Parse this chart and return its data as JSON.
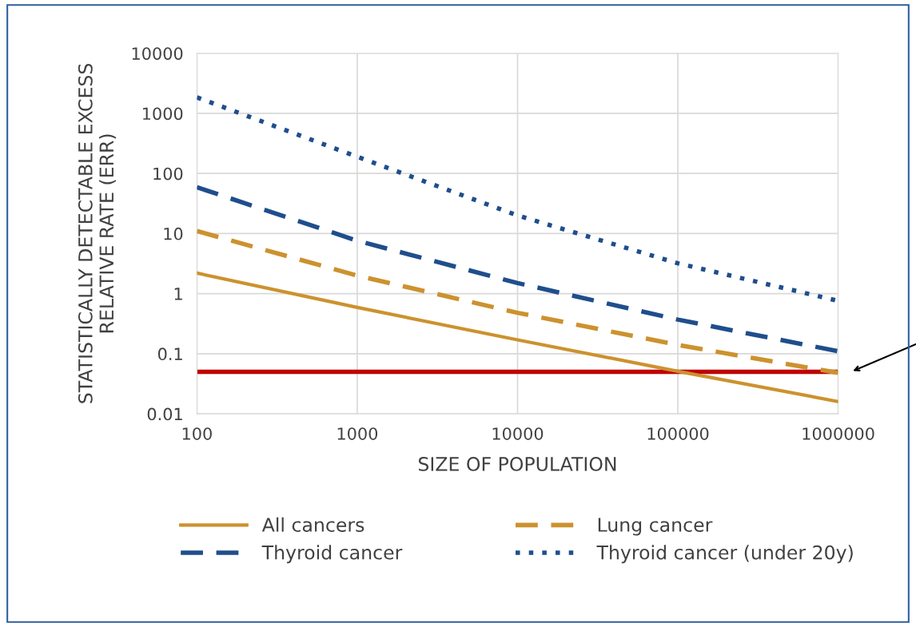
{
  "chart_data": {
    "type": "line",
    "xlabel": "SIZE OF POPULATION",
    "ylabel": "STATISTICALLY DETECTABLE EXCESS\nRELATIVE RATE (ERR)",
    "log": "xy",
    "grid": true,
    "legend": "bottom",
    "xlim": [
      100,
      1000000
    ],
    "xticks": [
      100,
      1000,
      10000,
      100000,
      1000000
    ],
    "ylim": [
      0.01,
      10000
    ],
    "yticks": [
      0.01,
      0.1,
      1,
      10,
      100,
      1000,
      10000
    ],
    "x": [
      100,
      1000,
      10000,
      100000,
      1000000
    ],
    "series": [
      {
        "name": "All cancers",
        "color": "#cc922e",
        "line_style": "solid",
        "values": [
          2.2,
          0.59,
          0.17,
          0.051,
          0.016
        ]
      },
      {
        "name": "Lung cancer",
        "color": "#cc922e",
        "line_style": "dashed",
        "values": [
          11,
          2.0,
          0.48,
          0.14,
          0.048
        ]
      },
      {
        "name": "Thyroid cancer",
        "color": "#1f4e8c",
        "line_style": "dashed",
        "values": [
          59,
          7.6,
          1.5,
          0.37,
          0.11
        ]
      },
      {
        "name": "Thyroid cancer (under 20y)",
        "color": "#1f4e8c",
        "line_style": "dotted",
        "values": [
          1850,
          190,
          20,
          3.2,
          0.76
        ]
      }
    ],
    "ref_lines": [
      {
        "axis": "y",
        "value": 0.05,
        "color": "#c00000",
        "line_style": "solid"
      }
    ]
  }
}
